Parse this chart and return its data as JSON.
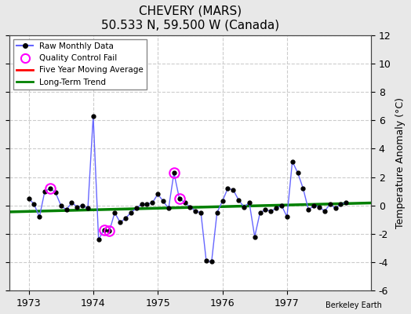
{
  "title": "CHEVERY (MARS)",
  "subtitle": "50.533 N, 59.500 W (Canada)",
  "ylabel": "Temperature Anomaly (°C)",
  "credit": "Berkeley Earth",
  "ylim": [
    -6,
    12
  ],
  "yticks": [
    -6,
    -4,
    -2,
    0,
    2,
    4,
    6,
    8,
    10,
    12
  ],
  "xlim": [
    1972.7,
    1978.3
  ],
  "xticks": [
    1973,
    1974,
    1975,
    1976,
    1977
  ],
  "bg_color": "#e8e8e8",
  "plot_bg_color": "#ffffff",
  "raw_x": [
    1973.0,
    1973.083,
    1973.167,
    1973.25,
    1973.333,
    1973.417,
    1973.5,
    1973.583,
    1973.667,
    1973.75,
    1973.833,
    1973.917,
    1974.0,
    1974.083,
    1974.167,
    1974.25,
    1974.333,
    1974.417,
    1974.5,
    1974.583,
    1974.667,
    1974.75,
    1974.833,
    1974.917,
    1975.0,
    1975.083,
    1975.167,
    1975.25,
    1975.333,
    1975.417,
    1975.5,
    1975.583,
    1975.667,
    1975.75,
    1975.833,
    1975.917,
    1976.0,
    1976.083,
    1976.167,
    1976.25,
    1976.333,
    1976.417,
    1976.5,
    1976.583,
    1976.667,
    1976.75,
    1976.833,
    1976.917,
    1977.0,
    1977.083,
    1977.167,
    1977.25,
    1977.333,
    1977.417,
    1977.5,
    1977.583,
    1977.667,
    1977.75,
    1977.833,
    1977.917
  ],
  "raw_y": [
    0.5,
    0.1,
    -0.8,
    1.0,
    1.2,
    0.9,
    0.0,
    -0.3,
    0.2,
    -0.1,
    0.0,
    -0.2,
    6.3,
    -2.4,
    -1.7,
    -1.8,
    -0.5,
    -1.2,
    -0.9,
    -0.5,
    -0.2,
    0.1,
    0.1,
    0.2,
    0.8,
    0.3,
    -0.2,
    2.3,
    0.5,
    0.2,
    -0.1,
    -0.4,
    -0.5,
    -3.9,
    -3.95,
    -0.5,
    0.3,
    1.2,
    1.1,
    0.4,
    -0.1,
    0.2,
    -2.2,
    -0.5,
    -0.3,
    -0.4,
    -0.2,
    0.0,
    -0.8,
    3.1,
    2.3,
    1.2,
    -0.3,
    0.0,
    -0.1,
    -0.4,
    0.1,
    -0.2,
    0.1,
    0.2
  ],
  "qc_fail_x": [
    1973.333,
    1974.167,
    1974.25,
    1975.25,
    1975.333
  ],
  "qc_fail_y": [
    1.2,
    -1.7,
    -1.8,
    2.3,
    0.5
  ],
  "trend_x": [
    1972.7,
    1978.3
  ],
  "trend_y": [
    -0.45,
    0.18
  ],
  "raw_line_color": "#6666ff",
  "marker_color": "black",
  "qc_color": "magenta",
  "mavg_color": "red",
  "trend_color": "green",
  "legend_items": [
    "Raw Monthly Data",
    "Quality Control Fail",
    "Five Year Moving Average",
    "Long-Term Trend"
  ]
}
